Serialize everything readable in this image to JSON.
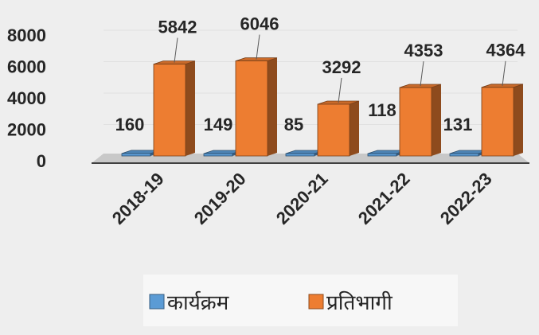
{
  "chart_data": {
    "type": "bar",
    "categories": [
      "2018-19",
      "2019-20",
      "2020-21",
      "2021-22",
      "2022-23"
    ],
    "series": [
      {
        "name": "कार्यक्रम",
        "color": "#5b9bd5",
        "values": [
          160,
          149,
          85,
          118,
          131
        ]
      },
      {
        "name": "प्रतिभागी",
        "color": "#ed7d31",
        "values": [
          5842,
          6046,
          3292,
          4353,
          4364
        ]
      }
    ],
    "ylim": [
      0,
      8000
    ],
    "yticks": [
      0,
      2000,
      4000,
      6000,
      8000
    ],
    "grid": true,
    "legend": "bottom"
  }
}
